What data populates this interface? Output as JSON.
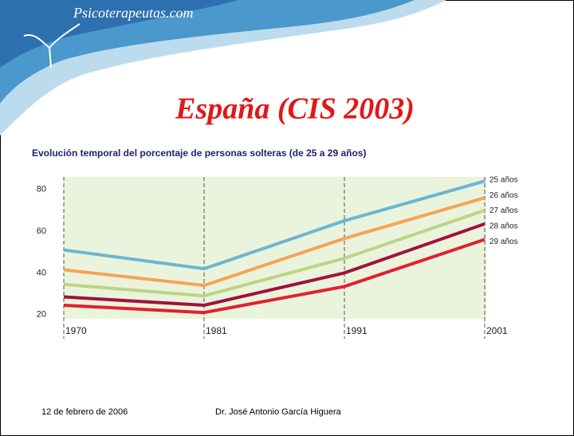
{
  "header": {
    "site": "Psicoterapeutas.com",
    "title": "España (CIS 2003)"
  },
  "chart_data": {
    "type": "line",
    "title": "Evolución temporal del porcentaje de personas solteras (de 25 a 29 años)",
    "categories": [
      "1970",
      "1981",
      "1991",
      "2001"
    ],
    "series": [
      {
        "name": "25 años",
        "color": "#6cb6d2",
        "values": [
          51,
          42,
          65,
          84
        ]
      },
      {
        "name": "26 años",
        "color": "#f4a456",
        "values": [
          41.5,
          34,
          56.5,
          76
        ]
      },
      {
        "name": "27 años",
        "color": "#bcd486",
        "values": [
          34.5,
          29,
          47,
          70
        ]
      },
      {
        "name": "28 años",
        "color": "#a0123c",
        "values": [
          28.5,
          24.5,
          40,
          63.5
        ]
      },
      {
        "name": "29 años",
        "color": "#e2202e",
        "values": [
          24.5,
          21,
          33.5,
          56
        ]
      }
    ],
    "ylim": [
      18,
      86
    ],
    "yticks": [
      20,
      40,
      60,
      80
    ],
    "grid": false
  },
  "footer": {
    "date": "12 de febrero de 2006",
    "author": "Dr. José Antonio García Higuera"
  }
}
